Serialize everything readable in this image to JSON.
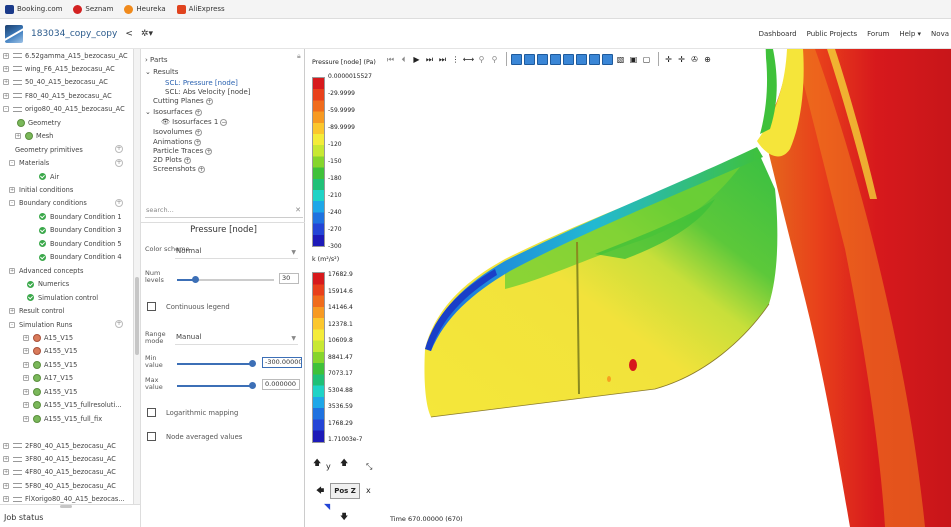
{
  "bookmarks": [
    {
      "label": "Booking.com",
      "color": "#1a3a8a"
    },
    {
      "label": "Seznam",
      "color": "#d32222"
    },
    {
      "label": "Heureka",
      "color": "#f08a1c"
    },
    {
      "label": "AliExpress",
      "color": "#e0431e"
    }
  ],
  "header": {
    "project": "183034_copy_copy",
    "share_icon": "share-icon",
    "settings_icon": "gear-icon",
    "settings_caret": "▾",
    "nav": [
      "Dashboard",
      "Public Projects",
      "Forum",
      "Help ▾",
      "Nova"
    ]
  },
  "tree": [
    {
      "label": "6.52gamma_A15_bezocasu_AC",
      "x": 0,
      "t": "g",
      "g": "+"
    },
    {
      "label": "wing_F6_A15_bezocasu_AC",
      "x": 0,
      "t": "g",
      "g": "+"
    },
    {
      "label": "50_40_A15_bezocasu_AC",
      "x": 0,
      "t": "g",
      "g": "+"
    },
    {
      "label": "F80_40_A15_bezocasu_AC",
      "x": 0,
      "t": "g",
      "g": "+"
    },
    {
      "label": "origo80_40_A15_bezocasu_AC",
      "x": 0,
      "t": "g",
      "g": "-"
    },
    {
      "label": "Geometry",
      "x": 14,
      "t": "gear"
    },
    {
      "label": "Mesh",
      "x": 12,
      "t": "gear",
      "g": "+"
    },
    {
      "label": "Geometry primitives",
      "x": 12,
      "t": "none",
      "c": "+"
    },
    {
      "label": "Materials",
      "x": 6,
      "t": "none",
      "g": "-",
      "c": "+"
    },
    {
      "label": "Air",
      "x": 36,
      "t": "chk"
    },
    {
      "label": "Initial conditions",
      "x": 6,
      "t": "none",
      "g": "+"
    },
    {
      "label": "Boundary conditions",
      "x": 6,
      "t": "none",
      "g": "-",
      "c": "+"
    },
    {
      "label": "Boundary Condition 1",
      "x": 36,
      "t": "chk"
    },
    {
      "label": "Boundary Condition 3",
      "x": 36,
      "t": "chk"
    },
    {
      "label": "Boundary Condition 5",
      "x": 36,
      "t": "chk"
    },
    {
      "label": "Boundary Condition 4",
      "x": 36,
      "t": "chk"
    },
    {
      "label": "Advanced concepts",
      "x": 6,
      "t": "none",
      "g": "+"
    },
    {
      "label": "Numerics",
      "x": 24,
      "t": "chk"
    },
    {
      "label": "Simulation control",
      "x": 24,
      "t": "chk"
    },
    {
      "label": "Result control",
      "x": 6,
      "t": "none",
      "g": "+"
    },
    {
      "label": "Simulation Runs",
      "x": 6,
      "t": "none",
      "g": "-",
      "c": "+"
    },
    {
      "label": "A15_V15",
      "x": 20,
      "t": "gearred",
      "g": "+"
    },
    {
      "label": "A155_V15",
      "x": 20,
      "t": "gearred",
      "g": "+"
    },
    {
      "label": "A155_V15",
      "x": 20,
      "t": "gear",
      "g": "+"
    },
    {
      "label": "A17_V15",
      "x": 20,
      "t": "gear",
      "g": "+"
    },
    {
      "label": "A155_V15",
      "x": 20,
      "t": "gear",
      "g": "+"
    },
    {
      "label": "A155_V15_fullresoluti...",
      "x": 20,
      "t": "gear",
      "g": "+"
    },
    {
      "label": "A155_V15_full_fix",
      "x": 20,
      "t": "gear",
      "g": "+"
    },
    {
      "label": "",
      "x": 20,
      "t": "none"
    },
    {
      "label": "2F80_40_A15_bezocasu_AC",
      "x": 0,
      "t": "g",
      "g": "+"
    },
    {
      "label": "3F80_40_A15_bezocasu_AC",
      "x": 0,
      "t": "g",
      "g": "+"
    },
    {
      "label": "4F80_40_A15_bezocasu_AC",
      "x": 0,
      "t": "g",
      "g": "+"
    },
    {
      "label": "5F80_40_A15_bezocasu_AC",
      "x": 0,
      "t": "g",
      "g": "+"
    },
    {
      "label": "FlXorigo80_40_A15_bezocas...",
      "x": 0,
      "t": "g",
      "g": "+"
    }
  ],
  "job_status": "Job status",
  "panel": {
    "parts": "Parts",
    "results": "Results",
    "scl_pressure": "SCL: Pressure [node]",
    "scl_velocity": "SCL: Abs Velocity [node]",
    "cutting": "Cutting Planes",
    "isosurfaces": "Isosurfaces",
    "isosurface1": "Isosurfaces 1",
    "isovolumes": "Isovolumes",
    "animations": "Animations",
    "particle": "Particle Traces",
    "plots": "2D Plots",
    "screenshots": "Screenshots",
    "search_placeholder": "search...",
    "section_title": "Pressure [node]",
    "color_scheme_label": "Color scheme",
    "color_scheme": "Normal",
    "num_levels_label": "Num levels",
    "num_levels": "30",
    "num_levels_fraction": 0.19,
    "continuous_legend": "Continuous legend",
    "range_mode_label": "Range mode",
    "range_mode": "Manual",
    "min_label": "Min value",
    "min_value": "-300.00000",
    "min_fraction": 0.97,
    "max_label": "Max value",
    "max_value": "0.000000",
    "max_fraction": 0.97,
    "log_mapping": "Logarithmic mapping",
    "node_avg": "Node averaged values"
  },
  "legend1": {
    "title": "Pressure [node] (Pa)",
    "ticks": [
      "0.0000015527",
      "-29.9999",
      "-59.9999",
      "-89.9999",
      "-120",
      "-150",
      "-180",
      "-210",
      "-240",
      "-270",
      "-300"
    ],
    "colors": [
      "#d7191c",
      "#e8401b",
      "#f06c1c",
      "#f79a22",
      "#fbc72e",
      "#f4ec3a",
      "#c8e833",
      "#86d52c",
      "#3fc13a",
      "#20c077",
      "#1fd3c6",
      "#1ea7e8",
      "#1f72e0",
      "#2445d6",
      "#1d1ab8"
    ]
  },
  "legend2": {
    "title": "k (m²/s²)",
    "ticks": [
      "17682.9",
      "15914.6",
      "14146.4",
      "12378.1",
      "10609.8",
      "8841.47",
      "7073.17",
      "5304.88",
      "3536.59",
      "1768.29",
      "1.71003e-7"
    ]
  },
  "time": "Time 670.00000 (670)",
  "nav3d": {
    "face": "Pos Z",
    "y": "y",
    "x": "x"
  },
  "toolbar": [
    "⏮",
    "⏴",
    "▶",
    "⏭",
    "⏭",
    "⋮",
    "⟷",
    "⚲",
    "⚲"
  ]
}
